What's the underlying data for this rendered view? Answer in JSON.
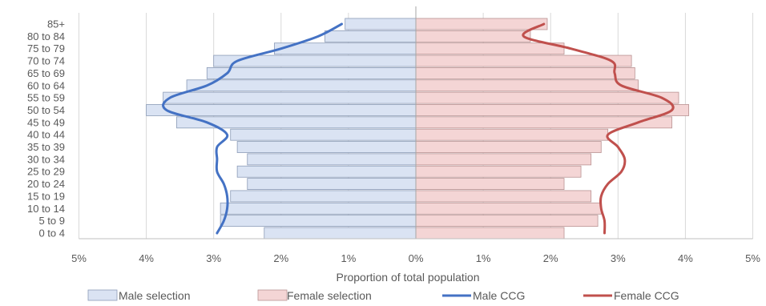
{
  "chart_data": {
    "type": "bar",
    "subtype": "population-pyramid",
    "orientation": "horizontal",
    "title": "",
    "xlabel": "Proportion of total population",
    "ylabel": "",
    "xlim": [
      -5,
      5
    ],
    "x_ticks": [
      -5,
      -4,
      -3,
      -2,
      -1,
      0,
      1,
      2,
      3,
      4,
      5
    ],
    "x_tick_labels": [
      "5%",
      "4%",
      "3%",
      "2%",
      "1%",
      "0%",
      "1%",
      "2%",
      "3%",
      "4%",
      "5%"
    ],
    "grid": "vertical",
    "legend_position": "bottom",
    "categories": [
      "0 to 4",
      "5 to 9",
      "10 to 14",
      "15 to 19",
      "20 to 24",
      "25 to 29",
      "30 to 34",
      "35 to 39",
      "40 to 44",
      "45 to 49",
      "50 to 54",
      "55 to 59",
      "60 to 64",
      "65 to 69",
      "70 to 74",
      "75 to 79",
      "80 to 84",
      "85+"
    ],
    "series": [
      {
        "name": "Male selection",
        "kind": "bar",
        "side": "left",
        "color": "#dae3f3",
        "border": "#8c9cb7",
        "values": [
          2.25,
          2.9,
          2.9,
          2.75,
          2.5,
          2.65,
          2.5,
          2.65,
          2.75,
          3.55,
          4.0,
          3.75,
          3.4,
          3.1,
          3.0,
          2.1,
          1.35,
          1.05
        ]
      },
      {
        "name": "Female selection",
        "kind": "bar",
        "side": "right",
        "color": "#f4d5d5",
        "border": "#b99393",
        "values": [
          2.2,
          2.7,
          2.75,
          2.6,
          2.2,
          2.45,
          2.6,
          2.75,
          2.85,
          3.8,
          4.05,
          3.9,
          3.3,
          3.25,
          3.2,
          2.2,
          1.7,
          1.95
        ]
      },
      {
        "name": "Male CCG",
        "kind": "line",
        "side": "left",
        "color": "#4472c4",
        "values": [
          2.95,
          2.85,
          2.8,
          2.8,
          2.85,
          2.95,
          2.95,
          2.95,
          2.8,
          3.1,
          3.7,
          3.65,
          3.1,
          2.8,
          2.65,
          2.0,
          1.45,
          1.1
        ]
      },
      {
        "name": "Female CCG",
        "kind": "line",
        "side": "right",
        "color": "#c0504d",
        "values": [
          2.8,
          2.8,
          2.75,
          2.75,
          2.85,
          3.05,
          3.1,
          3.0,
          2.85,
          3.3,
          3.8,
          3.65,
          3.05,
          2.95,
          2.9,
          2.3,
          1.6,
          1.9
        ]
      }
    ]
  }
}
